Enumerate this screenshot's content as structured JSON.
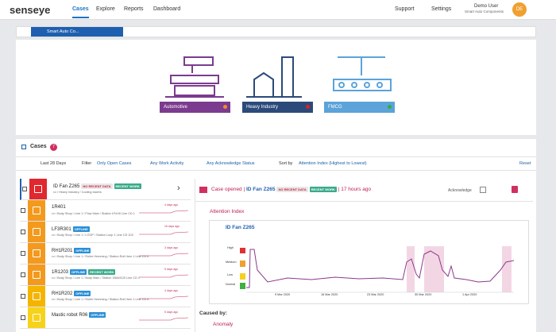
{
  "nav": {
    "logo": "senseye",
    "items": [
      "Cases",
      "Explore",
      "Reports",
      "Dashboard"
    ],
    "support": "Support",
    "settings": "Settings",
    "user": "Demo User",
    "org": "Smart Auto Components",
    "avatar": "DE"
  },
  "breadcrumb": "Smart Auto Co...",
  "sites": [
    {
      "label": "Automotive"
    },
    {
      "label": "Heavy Industry"
    },
    {
      "label": "FMCG"
    }
  ],
  "cases": {
    "title": "Cases",
    "count": 7,
    "filters": {
      "period": "Last 28 Days",
      "filter": "Filter",
      "open": "Only Open Cases",
      "work": "Any Work Activity",
      "ack": "Any Acknowledge Status",
      "sort": "Sort by",
      "order": "Attention Index (Highest to Lowest)",
      "reset": "Reset"
    },
    "list": [
      {
        "name": "ID Fan Z265",
        "tags": [
          "NO RECENT DATA",
          "RECENT WORK"
        ],
        "path": "••• / Heavy Industry / Cooling towers"
      },
      {
        "name": "1R401",
        "tags": [],
        "path": "••• / Body Shop / Line 1 / Flow Main / Station 1FxH0 Line CD 1",
        "ago": "4 days ago"
      },
      {
        "name": "LF3R301",
        "tags": [
          "OFFLINE"
        ],
        "path": "••• / Body Shop / Line 1 / LOOP / Station Loop 1 Line CD 103",
        "ago": "16 days ago"
      },
      {
        "name": "RH1R201",
        "tags": [
          "OFFLINE"
        ],
        "path": "••• / Body Shop / Line 1 / Roller Hemming / Station Roll Hem 1 Line CD 6",
        "ago": "3 days ago"
      },
      {
        "name": "1R1203",
        "tags": [
          "OFFLINE",
          "RECENT WORK"
        ],
        "path": "••• / Body Shop / Line 1 / Body Main / Station 1BAM120 Line CD 1",
        "ago": "5 days ago"
      },
      {
        "name": "RH1R202",
        "tags": [
          "OFFLINE"
        ],
        "path": "••• / Body Shop / Line 1 / Roller Hemming / Station Roll Hem 1 Line CD 6",
        "ago": "4 days ago"
      },
      {
        "name": "Mastic robot R06",
        "tags": [
          "OFFLINE"
        ],
        "path": "",
        "ago": "5 days ago"
      }
    ]
  },
  "detail": {
    "status": "Case opened",
    "asset": "ID Fan Z265",
    "tags": [
      "NO RECENT DATA",
      "RECENT WORK"
    ],
    "time": "17 hours ago",
    "acknowledge": "Acknowledge",
    "section": "Attention Index",
    "chart_title": "ID Fan Z265",
    "levels": [
      "High",
      "Medium",
      "Low",
      "Normal"
    ],
    "dates": [
      "9 Mar 2020",
      "16 Mar 2020",
      "23 Mar 2020",
      "30 Mar 2020",
      "1 Apr 2020"
    ],
    "caused_by": "Caused by:",
    "cause": "Anomaly"
  }
}
